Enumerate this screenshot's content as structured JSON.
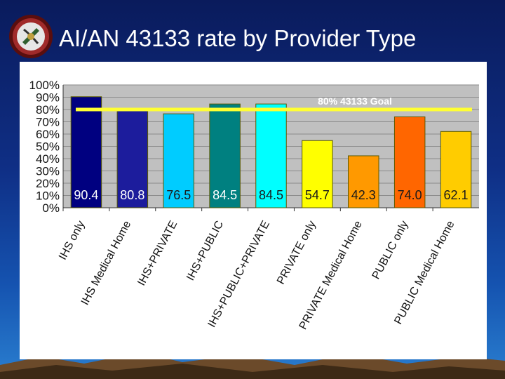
{
  "slide": {
    "title": "AI/AN 43133 rate by Provider Type",
    "logo_icon": "agency-seal-icon"
  },
  "colors": {
    "background": "#0f2f86",
    "title_text": "#ffffff",
    "goal_line": "#ffff33",
    "plot_area": "#c0c0c0"
  },
  "chart_data": {
    "type": "bar",
    "title": "",
    "xlabel": "",
    "ylabel": "",
    "ylim": [
      0,
      100
    ],
    "yticks": [
      "0%",
      "10%",
      "20%",
      "30%",
      "40%",
      "50%",
      "60%",
      "70%",
      "80%",
      "90%",
      "100%"
    ],
    "grid": true,
    "categories": [
      "IHS only",
      "IHS Medical Home",
      "IHS+PRIVATE",
      "IHS+PUBLIC",
      "IHS+PUBLIC+PRIVATE",
      "PRIVATE only",
      "PRIVATE Medical Home",
      "PUBLIC only",
      "PUBLIC Medical Home"
    ],
    "values": [
      90.4,
      80.8,
      76.5,
      84.5,
      84.5,
      54.7,
      42.3,
      74.0,
      62.1
    ],
    "data_labels": [
      "90.4",
      "80.8",
      "76.5",
      "84.5",
      "84.5",
      "54.7",
      "42.3",
      "74.0",
      "62.1"
    ],
    "bar_colors": [
      "#000080",
      "#1c1c9c",
      "#00ccff",
      "#008080",
      "#00ffff",
      "#ffff00",
      "#ff9900",
      "#ff6600",
      "#ffcc00"
    ],
    "label_colors": [
      "#ffffff",
      "#ffffff",
      "#1a1a1a",
      "#ffffff",
      "#1a1a1a",
      "#1a1a1a",
      "#1a1a1a",
      "#1a1a1a",
      "#1a1a1a"
    ],
    "goal": {
      "value": 80,
      "label": "80% 43133 Goal"
    }
  }
}
